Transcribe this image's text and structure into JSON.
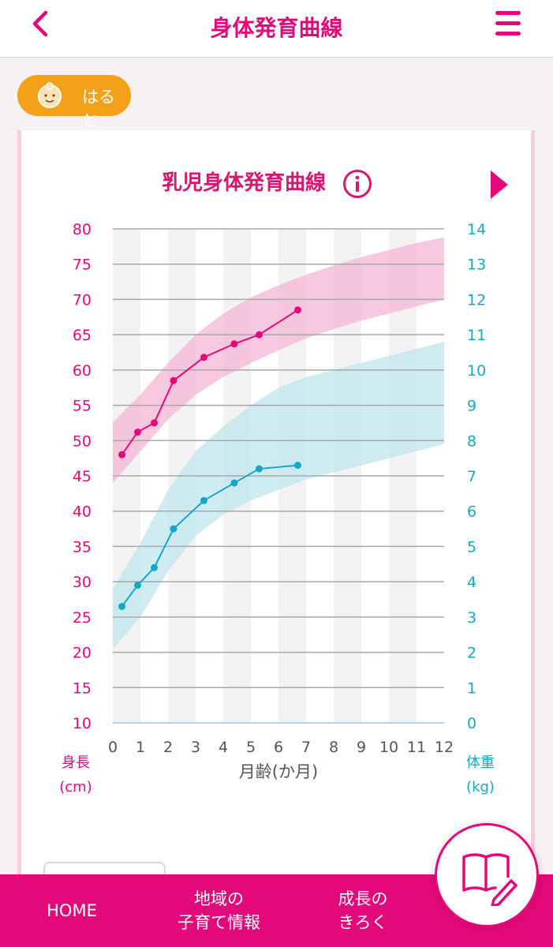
{
  "header": {
    "title": "身体発育曲線"
  },
  "child": {
    "name": "はると"
  },
  "chart_title": "乳児身体発育曲線",
  "chart_data": {
    "type": "line",
    "xlabel": "月齢(か月)",
    "x_ticks": [
      "0",
      "1",
      "2",
      "3",
      "4",
      "5",
      "6",
      "7",
      "8",
      "9",
      "10",
      "11",
      "12"
    ],
    "xlim": [
      0,
      12
    ],
    "left_axis": {
      "label_line1": "身長",
      "label_line2": "(cm)",
      "ticks": [
        "80",
        "75",
        "70",
        "65",
        "60",
        "55",
        "50",
        "45",
        "40",
        "35",
        "30",
        "25",
        "20",
        "15",
        "10"
      ],
      "ylim": [
        10,
        80
      ],
      "color": "#e4097a"
    },
    "right_axis": {
      "label_line1": "体重",
      "label_line2": "(kg)",
      "ticks": [
        "14",
        "13",
        "12",
        "11",
        "10",
        "9",
        "8",
        "7",
        "6",
        "5",
        "4",
        "3",
        "2",
        "1",
        "0"
      ],
      "ylim": [
        0,
        14
      ],
      "color": "#12a9c6"
    },
    "bands": [
      {
        "axis": "left",
        "color": "#f4b6d5",
        "x": [
          0,
          1,
          2,
          3,
          4,
          5,
          6,
          7,
          8,
          9,
          10,
          11,
          12
        ],
        "lower": [
          44.0,
          48.5,
          53.0,
          56.5,
          59.0,
          61.0,
          62.8,
          64.5,
          65.8,
          67.0,
          68.0,
          69.0,
          70.0
        ],
        "upper": [
          52.6,
          56.5,
          61.0,
          65.0,
          68.0,
          70.3,
          72.0,
          73.5,
          74.8,
          76.0,
          77.0,
          78.0,
          78.8
        ]
      },
      {
        "axis": "right",
        "color": "#bfe6ef",
        "x": [
          0,
          1,
          2,
          3,
          4,
          5,
          6,
          7,
          8,
          9,
          10,
          11,
          12
        ],
        "lower": [
          2.1,
          3.0,
          4.3,
          5.3,
          5.9,
          6.3,
          6.6,
          6.9,
          7.1,
          7.3,
          7.5,
          7.7,
          7.9
        ],
        "upper": [
          3.8,
          5.1,
          6.6,
          7.7,
          8.4,
          9.0,
          9.5,
          9.8,
          10.0,
          10.2,
          10.4,
          10.6,
          10.8
        ]
      }
    ],
    "series": [
      {
        "axis": "left",
        "color": "#e4097a",
        "x": [
          0.33,
          0.9,
          1.5,
          2.2,
          3.3,
          4.4,
          5.3,
          6.7
        ],
        "y": [
          48.0,
          51.2,
          52.5,
          58.5,
          61.8,
          63.7,
          65.0,
          68.5
        ]
      },
      {
        "axis": "right",
        "color": "#12a9c6",
        "x": [
          0.33,
          0.9,
          1.5,
          2.2,
          3.3,
          4.4,
          5.3,
          6.7
        ],
        "y": [
          3.3,
          3.9,
          4.4,
          5.5,
          6.3,
          6.8,
          7.2,
          7.3
        ]
      }
    ]
  },
  "bottom_nav": {
    "home": "HOME",
    "local_line1": "地域の",
    "local_line2": "子育て情報",
    "growth_line1": "成長の",
    "growth_line2": "きろく"
  }
}
